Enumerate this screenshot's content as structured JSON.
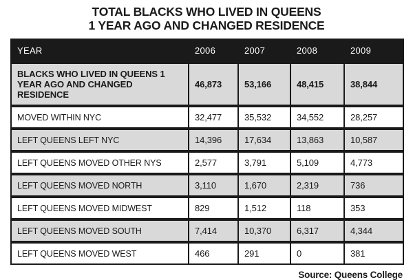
{
  "title": {
    "line1": "TOTAL BLACKS WHO LIVED IN QUEENS",
    "line2": "1 YEAR AGO AND CHANGED RESIDENCE"
  },
  "source": "Source: Queens College",
  "colors": {
    "header_bg": "#1a1a1a",
    "header_text": "#ffffff",
    "row_alt_bg": "#d9d9d9",
    "row_bg": "#ffffff",
    "border": "#1a1a1a",
    "text": "#1a1a1a",
    "page_bg": "#ffffff"
  },
  "chart_data": {
    "type": "table",
    "columns": [
      "YEAR",
      "2006",
      "2007",
      "2008",
      "2009"
    ],
    "rows": [
      {
        "label": "BLACKS WHO LIVED IN QUEENS 1 YEAR AGO AND CHANGED RESIDENCE",
        "values": [
          "46,873",
          "53,166",
          "48,415",
          "38,844"
        ],
        "bold": true,
        "shaded": true
      },
      {
        "label": "MOVED WITHIN NYC",
        "values": [
          "32,477",
          "35,532",
          "34,552",
          "28,257"
        ],
        "bold": false,
        "shaded": false
      },
      {
        "label": "LEFT QUEENS LEFT NYC",
        "values": [
          "14,396",
          "17,634",
          "13,863",
          "10,587"
        ],
        "bold": false,
        "shaded": true
      },
      {
        "label": "LEFT QUEENS MOVED OTHER NYS",
        "values": [
          "2,577",
          "3,791",
          "5,109",
          "4,773"
        ],
        "bold": false,
        "shaded": false
      },
      {
        "label": "LEFT QUEENS MOVED NORTH",
        "values": [
          "3,110",
          "1,670",
          "2,319",
          "736"
        ],
        "bold": false,
        "shaded": true
      },
      {
        "label": "LEFT QUEENS MOVED MIDWEST",
        "values": [
          "829",
          "1,512",
          "118",
          "353"
        ],
        "bold": false,
        "shaded": false
      },
      {
        "label": "LEFT QUEENS MOVED SOUTH",
        "values": [
          "7,414",
          "10,370",
          "6,317",
          "4,344"
        ],
        "bold": false,
        "shaded": true
      },
      {
        "label": "LEFT QUEENS MOVED WEST",
        "values": [
          "466",
          "291",
          "0",
          "381"
        ],
        "bold": false,
        "shaded": false
      }
    ]
  }
}
